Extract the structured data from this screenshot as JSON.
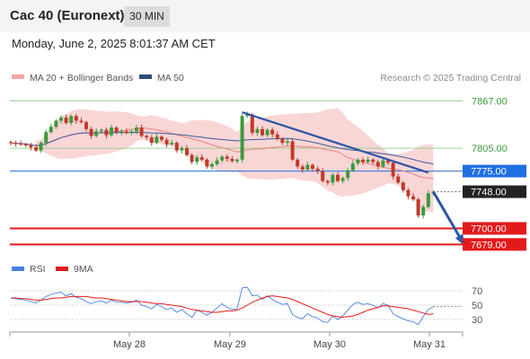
{
  "header": {
    "title": "Cac 40 (Euronext)",
    "timeframe": "30 MIN",
    "datetime": "Monday, June 2, 2025 8:01:37 AM CET"
  },
  "legend": {
    "ma20_label": "MA 20 + Bollinger Bands",
    "ma50_label": "MA 50",
    "credit": "Research © 2025 Trading Central",
    "rsi_label": "RSI",
    "rsi_ma_label": "9MA"
  },
  "colors": {
    "candle_up": "#3c9a3c",
    "candle_down": "#c0392b",
    "bollinger_fill": "#f9d6d6",
    "ma20": "#f08080",
    "ma50": "#3a5a9a",
    "trend_arrow": "#2d55a6",
    "support": "#e31a1a",
    "current_price_badge": "#1f6fe0",
    "green_level": "#7fc97f",
    "rsi": "#4a7fe0",
    "rsi_ma": "#e31a1a"
  },
  "chart_data": [
    {
      "type": "candlestick",
      "ylim": [
        7670,
        7885
      ],
      "x_labels": [
        "May 28",
        "May 29",
        "May 30",
        "May 31"
      ],
      "levels": [
        {
          "label": "7867.00",
          "value": 7867,
          "style": "green"
        },
        {
          "label": "7805.00",
          "value": 7805,
          "style": "green"
        },
        {
          "label": "7775.00",
          "value": 7775,
          "style": "blue"
        },
        {
          "label": "7748.00",
          "value": 7748,
          "style": "current"
        },
        {
          "label": "7700.00",
          "value": 7700,
          "style": "red"
        },
        {
          "label": "7679.00",
          "value": 7679,
          "style": "red"
        }
      ],
      "trendline": {
        "from_bar": 46,
        "from_value": 7852,
        "to_bar": 83,
        "to_value": 7773
      },
      "arrow": {
        "from_bar": 84,
        "from_value": 7748,
        "to_bar": 90,
        "to_value": 7680
      },
      "closes": [
        7812,
        7811,
        7810,
        7809,
        7806,
        7802,
        7812,
        7826,
        7833,
        7841,
        7845,
        7838,
        7847,
        7841,
        7839,
        7830,
        7821,
        7827,
        7829,
        7822,
        7832,
        7826,
        7827,
        7825,
        7827,
        7832,
        7821,
        7819,
        7812,
        7820,
        7816,
        7810,
        7812,
        7802,
        7805,
        7796,
        7787,
        7793,
        7790,
        7781,
        7784,
        7789,
        7794,
        7791,
        7788,
        7790,
        7847,
        7849,
        7825,
        7830,
        7822,
        7829,
        7823,
        7817,
        7812,
        7814,
        7790,
        7781,
        7777,
        7783,
        7778,
        7775,
        7762,
        7760,
        7770,
        7762,
        7766,
        7776,
        7785,
        7790,
        7787,
        7790,
        7787,
        7781,
        7789,
        7786,
        7768,
        7760,
        7750,
        7742,
        7738,
        7717,
        7728,
        7746,
        7748
      ]
    },
    {
      "type": "line",
      "name": "RSI",
      "ylim": [
        20,
        80
      ],
      "y_ticks": [
        70,
        50,
        30
      ],
      "rsi": [
        60,
        59,
        58,
        57,
        55,
        53,
        57,
        62,
        65,
        67,
        68,
        63,
        66,
        61,
        59,
        55,
        52,
        55,
        56,
        53,
        57,
        54,
        54,
        53,
        54,
        57,
        50,
        48,
        45,
        51,
        48,
        44,
        46,
        40,
        44,
        38,
        33,
        43,
        40,
        36,
        40,
        46,
        52,
        47,
        44,
        45,
        74,
        75,
        63,
        64,
        58,
        63,
        58,
        54,
        51,
        52,
        37,
        33,
        31,
        38,
        34,
        32,
        27,
        26,
        35,
        30,
        35,
        43,
        51,
        54,
        51,
        52,
        50,
        46,
        52,
        50,
        38,
        34,
        31,
        28,
        27,
        23,
        34,
        44,
        48
      ],
      "rsi_ma": [
        60,
        60,
        59,
        59,
        58,
        57,
        57,
        58,
        59,
        60,
        60,
        61,
        62,
        62,
        62,
        62,
        61,
        60,
        60,
        59,
        58,
        57,
        56,
        55,
        55,
        55,
        55,
        54,
        53,
        52,
        52,
        51,
        50,
        49,
        48,
        46,
        44,
        43,
        42,
        41,
        40,
        40,
        41,
        42,
        42,
        43,
        46,
        50,
        54,
        57,
        60,
        62,
        63,
        62,
        61,
        60,
        58,
        55,
        52,
        49,
        46,
        43,
        40,
        37,
        35,
        34,
        33,
        34,
        35,
        37,
        40,
        43,
        45,
        47,
        49,
        49,
        48,
        47,
        46,
        45,
        43,
        41,
        39,
        37,
        38
      ]
    }
  ]
}
